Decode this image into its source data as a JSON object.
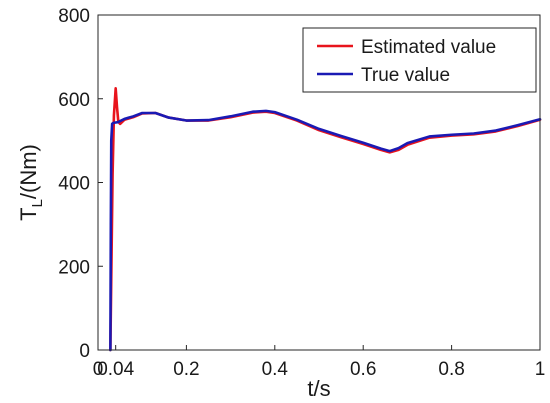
{
  "chart_data": {
    "type": "line",
    "xlabel": "t/s",
    "ylabel_main": "T",
    "ylabel_sub": "L",
    "ylabel_rest": "/(Nm)",
    "xlim": [
      0,
      1
    ],
    "ylim": [
      0,
      800
    ],
    "x_ticks": [
      {
        "value": 0,
        "label": "0"
      },
      {
        "value": 0.04,
        "label": "0.04"
      },
      {
        "value": 0.2,
        "label": "0.2"
      },
      {
        "value": 0.4,
        "label": "0.4"
      },
      {
        "value": 0.6,
        "label": "0.6"
      },
      {
        "value": 0.8,
        "label": "0.8"
      },
      {
        "value": 1,
        "label": "1"
      }
    ],
    "y_ticks": [
      {
        "value": 0,
        "label": "0"
      },
      {
        "value": 200,
        "label": "200"
      },
      {
        "value": 400,
        "label": "400"
      },
      {
        "value": 600,
        "label": "600"
      },
      {
        "value": 800,
        "label": "800"
      }
    ],
    "grid": false,
    "legend_position": "top-right",
    "series": [
      {
        "name": "Estimated value",
        "color": "#e8141c",
        "x": [
          0.028,
          0.03,
          0.033,
          0.036,
          0.04,
          0.043,
          0.046,
          0.05,
          0.06,
          0.08,
          0.1,
          0.13,
          0.16,
          0.2,
          0.25,
          0.3,
          0.35,
          0.38,
          0.4,
          0.45,
          0.5,
          0.55,
          0.6,
          0.64,
          0.66,
          0.68,
          0.7,
          0.75,
          0.8,
          0.85,
          0.9,
          0.95,
          1.0
        ],
        "y": [
          0,
          170,
          420,
          560,
          625,
          580,
          545,
          540,
          550,
          556,
          565,
          566,
          555,
          548,
          548,
          556,
          567,
          569,
          566,
          548,
          525,
          508,
          492,
          478,
          472,
          478,
          490,
          507,
          512,
          515,
          522,
          535,
          550
        ]
      },
      {
        "name": "True value",
        "color": "#1a1ab4",
        "x": [
          0.028,
          0.029,
          0.03,
          0.032,
          0.034,
          0.038,
          0.045,
          0.06,
          0.08,
          0.1,
          0.13,
          0.16,
          0.2,
          0.25,
          0.3,
          0.35,
          0.38,
          0.4,
          0.45,
          0.5,
          0.55,
          0.6,
          0.64,
          0.66,
          0.68,
          0.7,
          0.75,
          0.8,
          0.85,
          0.9,
          0.95,
          1.0
        ],
        "y": [
          0,
          300,
          500,
          540,
          542,
          543,
          544,
          552,
          558,
          566,
          566,
          555,
          548,
          549,
          558,
          569,
          571,
          568,
          550,
          528,
          511,
          495,
          481,
          475,
          482,
          494,
          510,
          514,
          517,
          524,
          537,
          551
        ]
      }
    ]
  }
}
